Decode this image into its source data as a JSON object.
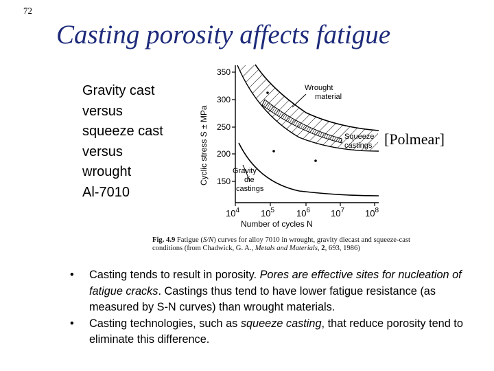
{
  "slide": {
    "number": "72",
    "title": "Casting porosity affects fatigue",
    "left_text": [
      "Gravity cast",
      "versus",
      "squeeze cast",
      "versus",
      "wrought",
      "Al-7010"
    ],
    "credit": "[Polmear]"
  },
  "figure": {
    "ylabel": "Cyclic stress S ± MPa",
    "yticks": [
      "350",
      "300",
      "250",
      "200",
      "150"
    ],
    "xticks": [
      {
        "base": "10",
        "exp": "4"
      },
      {
        "base": "10",
        "exp": "5"
      },
      {
        "base": "10",
        "exp": "6"
      },
      {
        "base": "10",
        "exp": "7"
      },
      {
        "base": "10",
        "exp": "8"
      }
    ],
    "xlabel": "Number of cycles N",
    "labels": {
      "wrought_1": "Wrought",
      "wrought_2": "material",
      "squeeze_1": "Squeeze",
      "squeeze_2": "castings",
      "gravity_1": "Gravity",
      "gravity_2": "die",
      "gravity_3": "castings"
    },
    "caption": {
      "fig_label": "Fig. 4.9",
      "text1": " Fatigue (",
      "sn": "S/N",
      "text2": ") curves for alloy 7010 in wrought, gravity diecast and squeeze-cast conditions (from Chadwick, G. A., ",
      "journal": "Metals and Materials",
      "text3": ", ",
      "volume": "2",
      "text4": ", 693, 1986)"
    }
  },
  "bullets": [
    {
      "marker": "•",
      "part1": "Casting tends to result in porosity.  ",
      "italic": "Pores are effective sites for nucleation of fatigue cracks",
      "part2": ".  Castings thus tend to have lower fatigue resistance (as measured by S-N curves) than wrought materials."
    },
    {
      "marker": "•",
      "part1": "Casting technologies, such as ",
      "italic": "squeeze casting",
      "part2": ", that reduce porosity tend to eliminate this difference."
    }
  ]
}
